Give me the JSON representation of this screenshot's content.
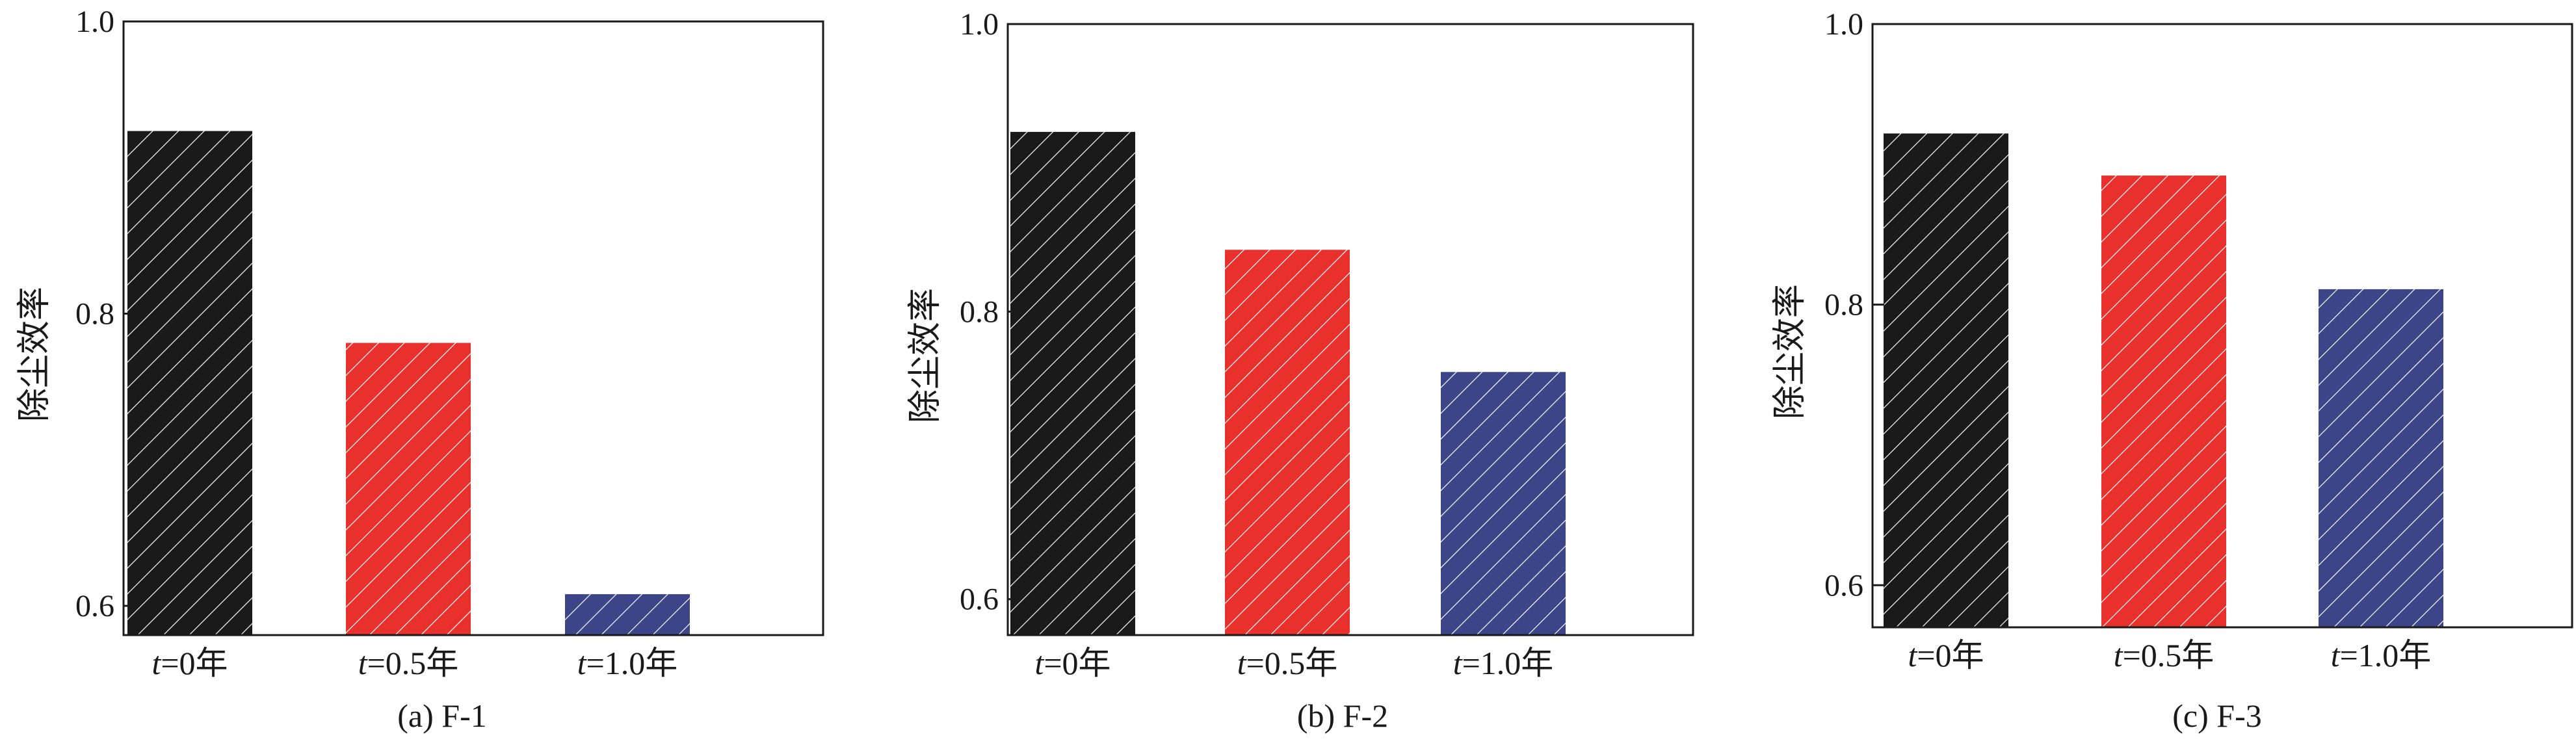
{
  "chart_data": [
    {
      "type": "bar",
      "caption": "(a) F-1",
      "ylabel": "除尘效率",
      "categories": [
        {
          "var": "t",
          "rest": "=0年"
        },
        {
          "var": "t",
          "rest": "=0.5年"
        },
        {
          "var": "t",
          "rest": "=1.0年"
        }
      ],
      "values": [
        0.925,
        0.78,
        0.608
      ],
      "colors": [
        "#1a1a1a",
        "#e8312c",
        "#3c4588"
      ],
      "pattern": "diagonal-hatch",
      "ylim": [
        0.58,
        1.0
      ],
      "yticks": [
        "0.6",
        "0.8",
        "1.0"
      ],
      "ytick_values": [
        0.6,
        0.8,
        1.0
      ]
    },
    {
      "type": "bar",
      "caption": "(b) F-2",
      "ylabel": "除尘效率",
      "categories": [
        {
          "var": "t",
          "rest": "=0年"
        },
        {
          "var": "t",
          "rest": "=0.5年"
        },
        {
          "var": "t",
          "rest": "=1.0年"
        }
      ],
      "values": [
        0.925,
        0.843,
        0.758
      ],
      "colors": [
        "#1a1a1a",
        "#e8312c",
        "#3c4588"
      ],
      "pattern": "diagonal-hatch",
      "ylim": [
        0.575,
        1.0
      ],
      "yticks": [
        "0.6",
        "0.8",
        "1.0"
      ],
      "ytick_values": [
        0.6,
        0.8,
        1.0
      ]
    },
    {
      "type": "bar",
      "caption": "(c) F-3",
      "ylabel": "除尘效率",
      "categories": [
        {
          "var": "t",
          "rest": "=0年"
        },
        {
          "var": "t",
          "rest": "=0.5年"
        },
        {
          "var": "t",
          "rest": "=1.0年"
        }
      ],
      "values": [
        0.922,
        0.892,
        0.811
      ],
      "colors": [
        "#1a1a1a",
        "#e8312c",
        "#3c4588"
      ],
      "pattern": "diagonal-hatch",
      "ylim": [
        0.57,
        1.0
      ],
      "yticks": [
        "0.6",
        "0.8",
        "1.0"
      ],
      "ytick_values": [
        0.6,
        0.8,
        1.0
      ]
    }
  ]
}
